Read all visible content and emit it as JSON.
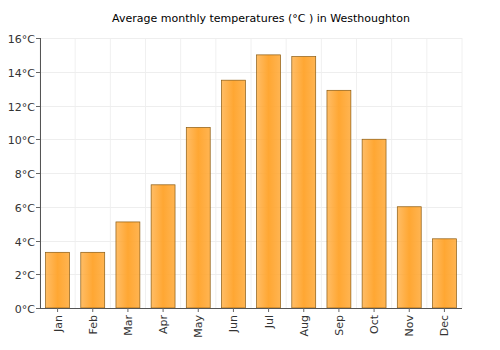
{
  "chart_data": {
    "type": "bar",
    "title": "Average monthly temperatures (°C ) in Westhoughton",
    "categories": [
      "Jan",
      "Feb",
      "Mar",
      "Apr",
      "May",
      "Jun",
      "Jul",
      "Aug",
      "Sep",
      "Oct",
      "Nov",
      "Dec"
    ],
    "values": [
      3.3,
      3.3,
      5.1,
      7.3,
      10.7,
      13.5,
      15.0,
      14.9,
      12.9,
      10.0,
      6.0,
      4.1
    ],
    "color": "#ffa733",
    "ylim": [
      0,
      16
    ],
    "yticks": [
      {
        "value": 0,
        "label": "0°C"
      },
      {
        "value": 2,
        "label": "2°C"
      },
      {
        "value": 4,
        "label": "4°C"
      },
      {
        "value": 6,
        "label": "6°C"
      },
      {
        "value": 8,
        "label": "8°C"
      },
      {
        "value": 10,
        "label": "10°C"
      },
      {
        "value": 12,
        "label": "12°C"
      },
      {
        "value": 14,
        "label": "14°C"
      },
      {
        "value": 16,
        "label": "16°C"
      }
    ],
    "grid": true
  }
}
